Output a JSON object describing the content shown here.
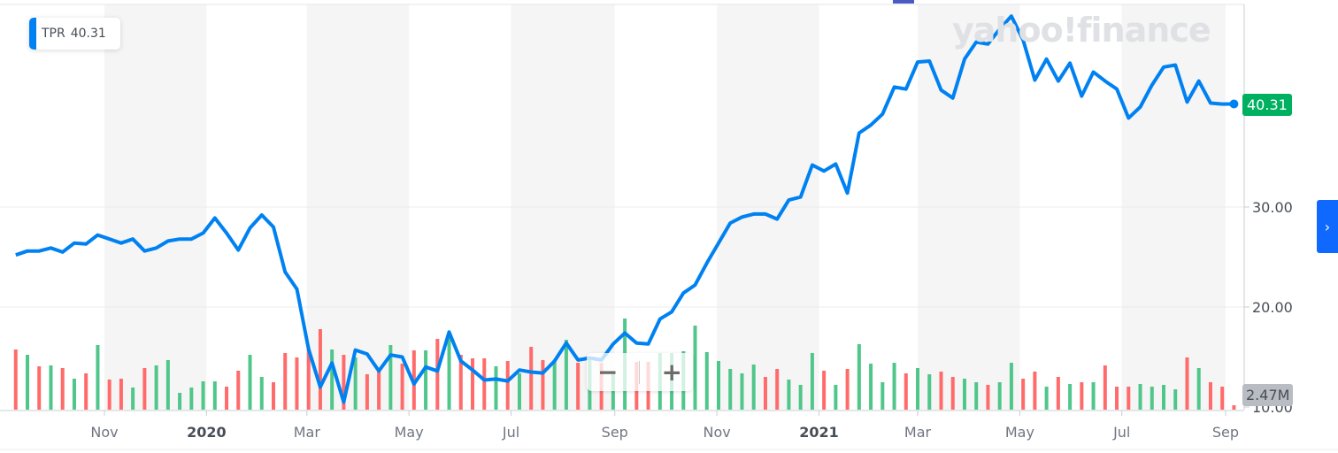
{
  "legend": {
    "symbol": "TPR",
    "value": "40.31",
    "color": "#0081f2"
  },
  "watermark": "yahoo!finance",
  "price_tag": {
    "value": "40.31",
    "color": "#00b061"
  },
  "volume_tag": {
    "value": "2.47M"
  },
  "zoom_controls": {
    "minus": "−",
    "plus": "+"
  },
  "side_button": {
    "icon": "chevron-right-icon",
    "glyph": "›",
    "color": "#0f69ff"
  },
  "chart_data": {
    "type": "line",
    "series_name": "TPR",
    "frequency": "weekly",
    "line_color": "#0081f2",
    "volume_up_color": "#4fc68a",
    "volume_down_color": "#ff6b6b",
    "ylim": [
      10,
      50.5
    ],
    "y_ticks": [
      "30.00",
      "20.00",
      "10.00"
    ],
    "y_tick_values": [
      30,
      20,
      10
    ],
    "x_ticks": [
      {
        "date": "2019-11-01",
        "label": "Nov",
        "bold": false
      },
      {
        "date": "2020-01-01",
        "label": "2020",
        "bold": true
      },
      {
        "date": "2020-03-01",
        "label": "Mar",
        "bold": false
      },
      {
        "date": "2020-05-01",
        "label": "May",
        "bold": false
      },
      {
        "date": "2020-07-01",
        "label": "Jul",
        "bold": false
      },
      {
        "date": "2020-09-01",
        "label": "Sep",
        "bold": false
      },
      {
        "date": "2020-11-01",
        "label": "Nov",
        "bold": false
      },
      {
        "date": "2021-01-01",
        "label": "2021",
        "bold": true
      },
      {
        "date": "2021-03-01",
        "label": "Mar",
        "bold": false
      },
      {
        "date": "2021-05-01",
        "label": "May",
        "bold": false
      },
      {
        "date": "2021-07-01",
        "label": "Jul",
        "bold": false
      },
      {
        "date": "2021-09-01",
        "label": "Sep",
        "bold": false
      }
    ],
    "shaded_ranges": [
      [
        "2019-11-01",
        "2020-01-01"
      ],
      [
        "2020-03-01",
        "2020-05-01"
      ],
      [
        "2020-07-01",
        "2020-09-01"
      ],
      [
        "2020-11-01",
        "2021-01-01"
      ],
      [
        "2021-03-01",
        "2021-05-01"
      ],
      [
        "2021-07-01",
        "2021-09-01"
      ]
    ],
    "dates": [
      "2019-09-09",
      "2019-09-16",
      "2019-09-23",
      "2019-09-30",
      "2019-10-07",
      "2019-10-14",
      "2019-10-21",
      "2019-10-28",
      "2019-11-04",
      "2019-11-11",
      "2019-11-18",
      "2019-11-25",
      "2019-12-02",
      "2019-12-09",
      "2019-12-16",
      "2019-12-23",
      "2019-12-30",
      "2020-01-06",
      "2020-01-13",
      "2020-01-20",
      "2020-01-27",
      "2020-02-03",
      "2020-02-10",
      "2020-02-17",
      "2020-02-24",
      "2020-03-02",
      "2020-03-09",
      "2020-03-16",
      "2020-03-23",
      "2020-03-30",
      "2020-04-06",
      "2020-04-13",
      "2020-04-20",
      "2020-04-27",
      "2020-05-04",
      "2020-05-11",
      "2020-05-18",
      "2020-05-25",
      "2020-06-01",
      "2020-06-08",
      "2020-06-15",
      "2020-06-22",
      "2020-06-29",
      "2020-07-06",
      "2020-07-13",
      "2020-07-20",
      "2020-07-27",
      "2020-08-03",
      "2020-08-10",
      "2020-08-17",
      "2020-08-24",
      "2020-08-31",
      "2020-09-07",
      "2020-09-14",
      "2020-09-21",
      "2020-09-28",
      "2020-10-05",
      "2020-10-12",
      "2020-10-19",
      "2020-10-26",
      "2020-11-02",
      "2020-11-09",
      "2020-11-16",
      "2020-11-23",
      "2020-11-30",
      "2020-12-07",
      "2020-12-14",
      "2020-12-21",
      "2020-12-28",
      "2021-01-04",
      "2021-01-11",
      "2021-01-18",
      "2021-01-25",
      "2021-02-01",
      "2021-02-08",
      "2021-02-15",
      "2021-02-22",
      "2021-03-01",
      "2021-03-08",
      "2021-03-15",
      "2021-03-22",
      "2021-03-29",
      "2021-04-05",
      "2021-04-12",
      "2021-04-19",
      "2021-04-26",
      "2021-05-03",
      "2021-05-10",
      "2021-05-17",
      "2021-05-24",
      "2021-05-31",
      "2021-06-07",
      "2021-06-14",
      "2021-06-21",
      "2021-06-28",
      "2021-07-05",
      "2021-07-12",
      "2021-07-19",
      "2021-07-26",
      "2021-08-02",
      "2021-08-09",
      "2021-08-16",
      "2021-08-23",
      "2021-08-30",
      "2021-09-06"
    ],
    "close": [
      25.2,
      25.6,
      25.6,
      25.9,
      25.5,
      26.4,
      26.3,
      27.2,
      26.8,
      26.4,
      26.8,
      25.6,
      25.9,
      26.6,
      26.8,
      26.8,
      27.4,
      28.9,
      27.4,
      25.7,
      27.9,
      29.2,
      28.0,
      23.5,
      21.8,
      15.8,
      12.0,
      14.4,
      10.5,
      15.7,
      15.3,
      13.6,
      15.2,
      15.0,
      12.3,
      14.0,
      13.6,
      17.5,
      14.6,
      13.7,
      12.7,
      12.8,
      12.6,
      13.7,
      13.5,
      13.4,
      14.6,
      16.4,
      14.7,
      14.9,
      14.7,
      16.3,
      17.4,
      16.4,
      16.3,
      18.8,
      19.5,
      21.4,
      22.2,
      24.4,
      26.4,
      28.4,
      29.0,
      29.3,
      29.3,
      28.8,
      30.7,
      31.0,
      34.2,
      33.6,
      34.3,
      31.4,
      37.4,
      38.2,
      39.3,
      42.0,
      41.8,
      44.5,
      44.6,
      41.7,
      40.9,
      44.8,
      46.5,
      46.3,
      47.8,
      49.1,
      46.7,
      42.7,
      44.8,
      42.6,
      44.4,
      41.1,
      43.5,
      42.6,
      41.8,
      38.9,
      40.0,
      42.2,
      44.0,
      44.2,
      40.5,
      42.6,
      40.4,
      40.3,
      40.31
    ],
    "volume_m": [
      34,
      31,
      24.5,
      25,
      23.5,
      17.5,
      20.5,
      36.5,
      17,
      17.5,
      12.5,
      23.5,
      25,
      28,
      9.5,
      12.5,
      16,
      16,
      13,
      22,
      31,
      18.5,
      15.5,
      32,
      29.5,
      35,
      45.5,
      34,
      31,
      29.5,
      20,
      23,
      36.5,
      26,
      33.5,
      33.5,
      40,
      41.5,
      31,
      29,
      29,
      24.5,
      27.5,
      20.5,
      35.5,
      28,
      27.5,
      39.5,
      26.5,
      28,
      26.5,
      20,
      51.5,
      27,
      27,
      32,
      32,
      33,
      47.5,
      32.5,
      27.5,
      23,
      20.5,
      25.5,
      18.5,
      23,
      17,
      14,
      32,
      22,
      14,
      23,
      37,
      26,
      15.5,
      26.5,
      20.5,
      23.5,
      20,
      21.5,
      18.5,
      17.5,
      15.5,
      14,
      15.5,
      26.5,
      17.5,
      21.5,
      13,
      18.5,
      14.5,
      15.5,
      15.5,
      25,
      13,
      13,
      14.5,
      13,
      14,
      11.5,
      29.5,
      23.5,
      15.5,
      13,
      2.47
    ],
    "volume_dir": [
      "d",
      "u",
      "d",
      "u",
      "d",
      "u",
      "d",
      "u",
      "d",
      "d",
      "u",
      "d",
      "u",
      "u",
      "u",
      "u",
      "u",
      "u",
      "d",
      "d",
      "u",
      "u",
      "d",
      "d",
      "d",
      "d",
      "d",
      "u",
      "d",
      "u",
      "d",
      "d",
      "u",
      "d",
      "d",
      "u",
      "d",
      "u",
      "d",
      "d",
      "d",
      "u",
      "d",
      "u",
      "d",
      "d",
      "u",
      "u",
      "d",
      "u",
      "d",
      "u",
      "u",
      "d",
      "d",
      "u",
      "u",
      "u",
      "u",
      "u",
      "u",
      "u",
      "u",
      "u",
      "d",
      "d",
      "u",
      "u",
      "u",
      "d",
      "u",
      "d",
      "u",
      "u",
      "u",
      "u",
      "d",
      "u",
      "u",
      "d",
      "d",
      "u",
      "u",
      "d",
      "u",
      "u",
      "d",
      "d",
      "u",
      "d",
      "u",
      "d",
      "u",
      "d",
      "d",
      "d",
      "u",
      "u",
      "u",
      "u",
      "d",
      "u",
      "d",
      "d",
      "d"
    ]
  }
}
